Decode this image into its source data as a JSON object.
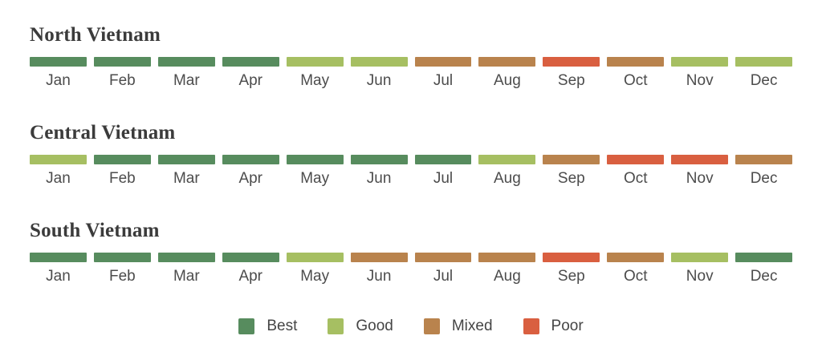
{
  "colors": {
    "best": "#578c5e",
    "good": "#a6bf62",
    "mixed": "#b9834d",
    "poor": "#d95f40"
  },
  "chart_data": {
    "type": "heatmap",
    "categories": [
      "Jan",
      "Feb",
      "Mar",
      "Apr",
      "May",
      "Jun",
      "Jul",
      "Aug",
      "Sep",
      "Oct",
      "Nov",
      "Dec"
    ],
    "series": [
      {
        "name": "North Vietnam",
        "values": [
          "best",
          "best",
          "best",
          "best",
          "good",
          "good",
          "mixed",
          "mixed",
          "poor",
          "mixed",
          "good",
          "good"
        ]
      },
      {
        "name": "Central Vietnam",
        "values": [
          "good",
          "best",
          "best",
          "best",
          "best",
          "best",
          "best",
          "good",
          "mixed",
          "poor",
          "poor",
          "mixed"
        ]
      },
      {
        "name": "South Vietnam",
        "values": [
          "best",
          "best",
          "best",
          "best",
          "good",
          "mixed",
          "mixed",
          "mixed",
          "poor",
          "mixed",
          "good",
          "best"
        ]
      }
    ],
    "legend": [
      {
        "label": "Best",
        "key": "best"
      },
      {
        "label": "Good",
        "key": "good"
      },
      {
        "label": "Mixed",
        "key": "mixed"
      },
      {
        "label": "Poor",
        "key": "poor"
      }
    ],
    "legend_position": "bottom",
    "grid": false
  }
}
